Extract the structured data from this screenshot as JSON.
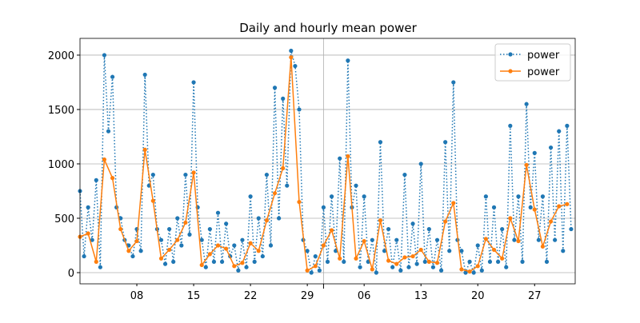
{
  "chart_data": {
    "type": "line",
    "title": "Daily and hourly mean power",
    "xlim": [
      0,
      61
    ],
    "ylim": [
      -103,
      2154
    ],
    "xticks": [
      {
        "value": 7,
        "label": "08"
      },
      {
        "value": 14,
        "label": "15"
      },
      {
        "value": 21,
        "label": "22"
      },
      {
        "value": 28,
        "label": "29"
      },
      {
        "value": 35,
        "label": "06"
      },
      {
        "value": 42,
        "label": "13"
      },
      {
        "value": 49,
        "label": "20"
      },
      {
        "value": 56,
        "label": "27"
      }
    ],
    "xmajor": [
      30
    ],
    "yticks": [
      0,
      500,
      1000,
      1500,
      2000
    ],
    "grid": true,
    "legend": "upper right",
    "series": [
      {
        "name": "power",
        "color": "#1f77b4",
        "style": "dotted",
        "x": [
          0,
          0.5,
          1,
          1.5,
          2,
          2.5,
          3,
          3.5,
          4,
          4.5,
          5,
          5.5,
          6,
          6.5,
          7,
          7.5,
          8,
          8.5,
          9,
          9.5,
          10,
          10.5,
          11,
          11.5,
          12,
          12.5,
          13,
          13.5,
          14,
          14.5,
          15,
          15.5,
          16,
          16.5,
          17,
          17.5,
          18,
          18.5,
          19,
          19.5,
          20,
          20.5,
          21,
          21.5,
          22,
          22.5,
          23,
          23.5,
          24,
          24.5,
          25,
          25.5,
          26,
          26.5,
          27,
          27.5,
          28,
          28.5,
          29,
          29.5,
          30,
          30.5,
          31,
          31.5,
          32,
          32.5,
          33,
          33.5,
          34,
          34.5,
          35,
          35.5,
          36,
          36.5,
          37,
          37.5,
          38,
          38.5,
          39,
          39.5,
          40,
          40.5,
          41,
          41.5,
          42,
          42.5,
          43,
          43.5,
          44,
          44.5,
          45,
          45.5,
          46,
          46.5,
          47,
          47.5,
          48,
          48.5,
          49,
          49.5,
          50,
          50.5,
          51,
          51.5,
          52,
          52.5,
          53,
          53.5,
          54,
          54.5,
          55,
          55.5,
          56,
          56.5,
          57,
          57.5,
          58,
          58.5,
          59,
          59.5,
          60,
          60.5
        ],
        "values": [
          750,
          150,
          600,
          300,
          850,
          50,
          2000,
          1300,
          1800,
          600,
          500,
          300,
          250,
          150,
          400,
          200,
          1820,
          800,
          900,
          400,
          300,
          80,
          400,
          100,
          500,
          250,
          900,
          350,
          1750,
          600,
          300,
          50,
          400,
          100,
          550,
          100,
          450,
          150,
          250,
          20,
          300,
          50,
          700,
          100,
          500,
          150,
          900,
          250,
          1700,
          500,
          1600,
          800,
          2040,
          1900,
          1500,
          300,
          200,
          0,
          150,
          20,
          600,
          100,
          700,
          200,
          1050,
          100,
          1950,
          600,
          800,
          50,
          700,
          100,
          300,
          0,
          1200,
          200,
          400,
          50,
          300,
          20,
          900,
          50,
          450,
          80,
          1000,
          100,
          400,
          50,
          300,
          20,
          1200,
          200,
          1750,
          300,
          200,
          0,
          100,
          0,
          250,
          20,
          700,
          100,
          600,
          100,
          400,
          50,
          1350,
          300,
          700,
          100,
          1550,
          600,
          1100,
          300,
          700,
          100,
          1150,
          300,
          1300,
          200,
          1350,
          400
        ]
      },
      {
        "name": "power",
        "color": "#ff7f0e",
        "style": "solid",
        "x": [
          0,
          1,
          2,
          3,
          4,
          5,
          6,
          7,
          8,
          9,
          10,
          11,
          12,
          13,
          14,
          15,
          16,
          17,
          18,
          19,
          20,
          21,
          22,
          23,
          24,
          25,
          26,
          27,
          28,
          29,
          30,
          31,
          32,
          33,
          34,
          35,
          36,
          37,
          38,
          39,
          40,
          41,
          42,
          43,
          44,
          45,
          46,
          47,
          48,
          49,
          50,
          51,
          52,
          53,
          54,
          55,
          56,
          57,
          58,
          59,
          60
        ],
        "values": [
          330,
          360,
          100,
          1040,
          870,
          400,
          200,
          290,
          1130,
          660,
          130,
          210,
          300,
          460,
          920,
          70,
          170,
          250,
          220,
          60,
          90,
          270,
          200,
          480,
          730,
          960,
          1980,
          650,
          20,
          60,
          250,
          390,
          130,
          1070,
          130,
          290,
          30,
          480,
          110,
          80,
          140,
          150,
          210,
          100,
          90,
          470,
          640,
          30,
          10,
          60,
          310,
          210,
          130,
          500,
          290,
          990,
          580,
          240,
          470,
          610,
          630
        ]
      }
    ]
  }
}
